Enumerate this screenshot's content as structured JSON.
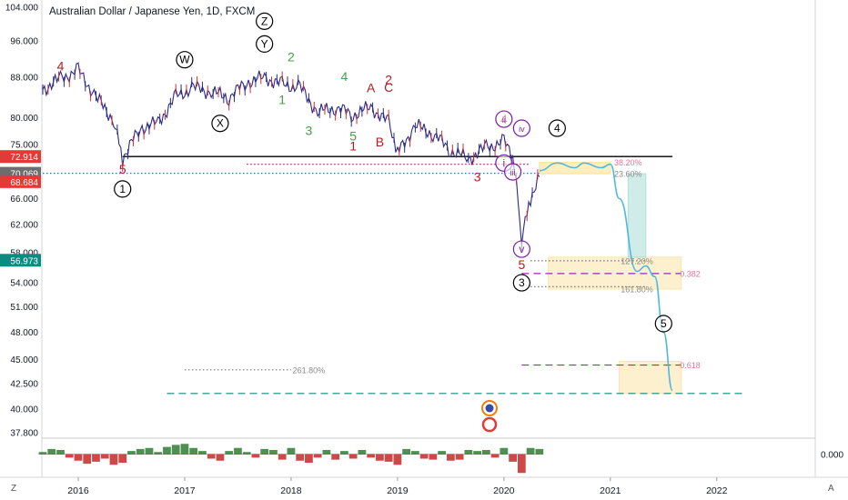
{
  "chart_data": {
    "type": "line",
    "title": "Australian Dollar / Japanese Yen, 1D, FXCM",
    "x_tick_labels": [
      "2016",
      "2017",
      "2018",
      "2019",
      "2020",
      "2021",
      "2022"
    ],
    "y_tick_labels": [
      "104.000",
      "96.000",
      "88.000",
      "80.000",
      "75.000",
      "66.000",
      "62.000",
      "58.000",
      "54.000",
      "51.000",
      "48.000",
      "45.000",
      "42.500",
      "40.000",
      "37.800"
    ],
    "price_tags": [
      {
        "value": "72.914",
        "color": "#e53935"
      },
      {
        "value": "70.069",
        "color": "#6d6d6d"
      },
      {
        "value": "68.684",
        "color": "#e53935"
      },
      {
        "value": "56.973",
        "color": "#0e8a80"
      }
    ],
    "price_series": {
      "x": [
        "2015-09",
        "2015-11",
        "2016-01",
        "2016-03",
        "2016-05",
        "2016-06",
        "2016-08",
        "2016-10",
        "2016-12",
        "2017-02",
        "2017-04",
        "2017-06",
        "2017-08",
        "2017-10",
        "2017-12",
        "2018-02",
        "2018-04",
        "2018-06",
        "2018-08",
        "2018-10",
        "2018-12",
        "2019-01",
        "2019-03",
        "2019-05",
        "2019-07",
        "2019-09",
        "2019-11",
        "2020-01",
        "2020-02",
        "2020-03",
        "2020-04",
        "2020-05"
      ],
      "y": [
        85.5,
        87.8,
        89.5,
        84,
        79.5,
        72.6,
        78,
        79,
        84,
        86,
        85,
        84,
        87,
        88,
        86.5,
        86,
        81,
        82,
        80.5,
        82,
        79,
        73.5,
        78.5,
        77,
        74,
        72.5,
        74.5,
        75.5,
        73,
        60,
        66,
        69.5
      ]
    },
    "projection": {
      "x": [
        "2020-05",
        "2020-07",
        "2020-09",
        "2020-10",
        "2020-12",
        "2021-01",
        "2021-02",
        "2021-04",
        "2021-05",
        "2021-06",
        "2021-07",
        "2021-08"
      ],
      "y": [
        70.5,
        71.8,
        71,
        71.8,
        71,
        71.6,
        66,
        55.5,
        56.2,
        54.8,
        48,
        41.8
      ]
    },
    "horizontal_lines": [
      {
        "y": 72.914,
        "color": "#000000",
        "style": "solid",
        "x_start": "2016-06",
        "x_end": "2021-08"
      },
      {
        "y": 70.069,
        "color": "#2962ff",
        "style": "dotted",
        "x_start": "2015-09",
        "x_end": "2020-05"
      },
      {
        "y": 71.6,
        "color": "#c2185b",
        "style": "dotted",
        "x_start": "2017-08",
        "x_end": "2020-04"
      },
      {
        "y": 55.2,
        "color": "#9c27b0",
        "style": "dashed",
        "x_start": "2020-03",
        "x_end": "2021-09"
      },
      {
        "y": 44.4,
        "color": "#9c27b0",
        "style": "dashed",
        "x_start": "2020-03",
        "x_end": "2021-09"
      },
      {
        "y": 41.5,
        "color": "#0e8a80",
        "style": "dashed",
        "x_start": "2016-11",
        "x_end": "2022-04"
      },
      {
        "y": 43.9,
        "color": "#777777",
        "style": "dotted",
        "x_start": "2017-01",
        "x_end": "2018-01"
      },
      {
        "y": 56.9,
        "color": "#777777",
        "style": "dotted",
        "x_start": "2020-04",
        "x_end": "2021-05"
      },
      {
        "y": 53.5,
        "color": "#777777",
        "style": "dotted",
        "x_start": "2020-04",
        "x_end": "2021-05"
      }
    ],
    "zones": [
      {
        "x_start": "2020-05",
        "x_end": "2021-01",
        "y_low": 70.0,
        "y_high": 71.9,
        "color": "#fbe08a"
      },
      {
        "x_start": "2020-06",
        "x_end": "2021-09",
        "y_low": 53.2,
        "y_high": 57.4,
        "color": "#fbe3a8"
      },
      {
        "x_start": "2021-02",
        "x_end": "2021-09",
        "y_low": 41.5,
        "y_high": 44.8,
        "color": "#fbe3a8"
      },
      {
        "x_start": "2021-03",
        "x_end": "2021-05",
        "y_low": 57.4,
        "y_high": 70.0,
        "color": "#a8ddd6"
      }
    ],
    "fib_labels": [
      {
        "text": "38.20%",
        "x": "2021-03",
        "y": 71.9
      },
      {
        "text": "23.60%",
        "x": "2021-03",
        "y": 70.0
      },
      {
        "text": "127.20%",
        "x": "2021-04",
        "y": 56.9
      },
      {
        "text": "0.382",
        "x": "2021-10",
        "y": 55.2
      },
      {
        "text": "161.80%",
        "x": "2021-04",
        "y": 53.2
      },
      {
        "text": "0.618",
        "x": "2021-10",
        "y": 44.4
      },
      {
        "text": "261.80%",
        "x": "2018-03",
        "y": 43.9
      }
    ],
    "wave_labels": [
      {
        "text": "4",
        "x": "2015-11",
        "y": 90.5,
        "color": "#b71c1c",
        "circle": false
      },
      {
        "text": "W",
        "x": "2017-01",
        "y": 91.8,
        "color": "#000000",
        "circle": true
      },
      {
        "text": "Z",
        "x": "2017-10",
        "y": 100.6,
        "color": "#000000",
        "circle": true
      },
      {
        "text": "Y",
        "x": "2017-10",
        "y": 95.3,
        "color": "#000000",
        "circle": true
      },
      {
        "text": "2",
        "x": "2018-01",
        "y": 92.4,
        "color": "#43a047",
        "circle": false
      },
      {
        "text": "1",
        "x": "2017-12",
        "y": 83.5,
        "color": "#43a047",
        "circle": false
      },
      {
        "text": "X",
        "x": "2017-05",
        "y": 78.9,
        "color": "#000000",
        "circle": true
      },
      {
        "text": "3",
        "x": "2018-03",
        "y": 77.6,
        "color": "#43a047",
        "circle": false
      },
      {
        "text": "4",
        "x": "2018-07",
        "y": 88.2,
        "color": "#43a047",
        "circle": false
      },
      {
        "text": "A",
        "x": "2018-10",
        "y": 85.9,
        "color": "#b71c1c",
        "circle": false
      },
      {
        "text": "2",
        "x": "2018-12",
        "y": 87.6,
        "color": "#b71c1c",
        "circle": false
      },
      {
        "text": "C",
        "x": "2018-12",
        "y": 86.0,
        "color": "#b71c1c",
        "circle": false
      },
      {
        "text": "5",
        "x": "2018-08",
        "y": 76.6,
        "color": "#43a047",
        "circle": false
      },
      {
        "text": "1",
        "x": "2018-08",
        "y": 74.8,
        "color": "#b71c1c",
        "circle": false
      },
      {
        "text": "B",
        "x": "2018-11",
        "y": 75.5,
        "color": "#b71c1c",
        "circle": false
      },
      {
        "text": "5",
        "x": "2016-06",
        "y": 70.8,
        "color": "#b71c1c",
        "circle": false
      },
      {
        "text": "1",
        "x": "2016-06",
        "y": 67.5,
        "color": "#000000",
        "circle": true
      },
      {
        "text": "3",
        "x": "2019-10",
        "y": 69.5,
        "color": "#b71c1c",
        "circle": false
      },
      {
        "text": "4",
        "x": "2020-01",
        "y": 79.7,
        "color": "#b71c1c",
        "circle": false
      },
      {
        "text": "ii",
        "x": "2020-01",
        "y": 79.7,
        "color": "#7b1fa2",
        "circle": true
      },
      {
        "text": "iv",
        "x": "2020-03",
        "y": 78.0,
        "color": "#7b1fa2",
        "circle": true
      },
      {
        "text": "4",
        "x": "2020-07",
        "y": 78.0,
        "color": "#000000",
        "circle": true
      },
      {
        "text": "i",
        "x": "2020-01",
        "y": 71.8,
        "color": "#7b1fa2",
        "circle": true
      },
      {
        "text": "iii",
        "x": "2020-02",
        "y": 70.3,
        "color": "#7b1fa2",
        "circle": true
      },
      {
        "text": "v",
        "x": "2020-03",
        "y": 58.5,
        "color": "#7b1fa2",
        "circle": true
      },
      {
        "text": "5",
        "x": "2020-03",
        "y": 56.4,
        "color": "#b71c1c",
        "circle": false
      },
      {
        "text": "3",
        "x": "2020-03",
        "y": 54.0,
        "color": "#000000",
        "circle": true
      },
      {
        "text": "5",
        "x": "2021-07",
        "y": 49.0,
        "color": "#000000",
        "circle": true
      }
    ],
    "oscillator": {
      "axis_label": "0.000",
      "x": [
        "2015-09",
        "2015-10",
        "2015-11",
        "2015-12",
        "2016-01",
        "2016-02",
        "2016-03",
        "2016-04",
        "2016-05",
        "2016-06",
        "2016-07",
        "2016-08",
        "2016-09",
        "2016-10",
        "2016-11",
        "2016-12",
        "2017-01",
        "2017-02",
        "2017-03",
        "2017-04",
        "2017-05",
        "2017-06",
        "2017-07",
        "2017-08",
        "2017-09",
        "2017-10",
        "2017-11",
        "2017-12",
        "2018-01",
        "2018-02",
        "2018-03",
        "2018-04",
        "2018-05",
        "2018-06",
        "2018-07",
        "2018-08",
        "2018-09",
        "2018-10",
        "2018-11",
        "2018-12",
        "2019-01",
        "2019-02",
        "2019-03",
        "2019-04",
        "2019-05",
        "2019-06",
        "2019-07",
        "2019-08",
        "2019-09",
        "2019-10",
        "2019-11",
        "2019-12",
        "2020-01",
        "2020-02",
        "2020-03",
        "2020-04",
        "2020-05"
      ],
      "values": [
        0.2,
        0.5,
        0.4,
        -0.3,
        -0.6,
        -0.9,
        -0.7,
        -0.4,
        -1.0,
        -0.8,
        0.3,
        0.5,
        0.6,
        0.2,
        0.7,
        0.9,
        1.0,
        0.6,
        0.3,
        -0.4,
        -0.6,
        0.3,
        0.6,
        0.2,
        -0.3,
        0.5,
        0.4,
        -0.5,
        0.6,
        -0.6,
        -0.8,
        -0.3,
        0.4,
        -0.5,
        0.3,
        -0.4,
        0.4,
        -0.3,
        -0.6,
        -0.7,
        -1.0,
        0.5,
        0.3,
        -0.4,
        -0.5,
        0.3,
        -0.6,
        -0.5,
        0.4,
        0.3,
        0.4,
        -0.3,
        0.6,
        -0.7,
        -1.8,
        0.6,
        0.5
      ],
      "ylim": [
        -2,
        1.2
      ]
    },
    "ylim": [
      37.8,
      104
    ],
    "scale": "log",
    "grid": false
  },
  "footer": {
    "left_icon_label": "Z",
    "right_icon_label": "A"
  }
}
